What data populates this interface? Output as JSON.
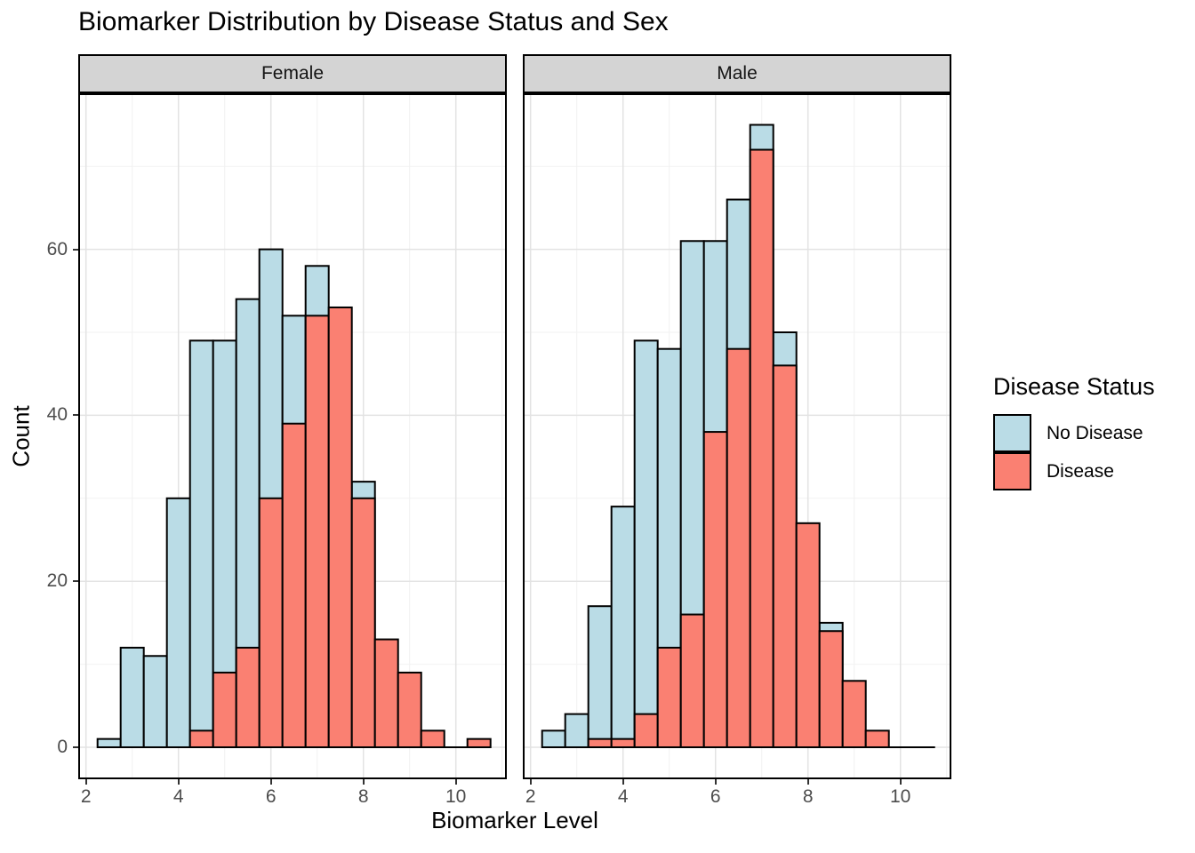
{
  "title": "Biomarker Distribution by Disease Status and Sex",
  "facets": [
    {
      "label": "Female"
    },
    {
      "label": "Male"
    }
  ],
  "axes": {
    "x_label": "Biomarker Level",
    "y_label": "Count",
    "x_ticks": [
      2,
      4,
      6,
      8,
      10
    ],
    "y_ticks": [
      0,
      20,
      40,
      60
    ]
  },
  "legend": {
    "title": "Disease Status",
    "items": [
      {
        "label": "No Disease",
        "color": "#BADCE6"
      },
      {
        "label": "Disease",
        "color": "#FA8072"
      }
    ]
  },
  "colors": {
    "no_disease_fill": "#BADCE6",
    "disease_fill": "#FA8072",
    "bar_outline": "#000000",
    "strip_fill": "#D4D4D4",
    "panel_border": "#000000",
    "grid_major": "#E3E3E3",
    "grid_minor": "#F2F2F2",
    "tick_label": "#4D4D4D"
  },
  "chart_data": {
    "type": "bar",
    "subtype": "overlaid-histogram",
    "title": "Biomarker Distribution by Disease Status and Sex",
    "xlabel": "Biomarker Level",
    "ylabel": "Count",
    "legend_position": "right",
    "binwidth": 0.5,
    "bin_centers": [
      2.5,
      3,
      3.5,
      4,
      4.5,
      5,
      5.5,
      6,
      6.5,
      7,
      7.5,
      8,
      8.5,
      9,
      9.5,
      10,
      10.5
    ],
    "x_domain": [
      1.83,
      11.17
    ],
    "y_domain": [
      0,
      79
    ],
    "baseline_extent": [
      2.25,
      10.75
    ],
    "grid": {
      "x_major": [
        2,
        4,
        6,
        8,
        10
      ],
      "x_minor": [
        3,
        5,
        7,
        9,
        11
      ],
      "y_major": [
        0,
        20,
        40,
        60
      ],
      "y_minor": [
        10,
        30,
        50,
        70
      ]
    },
    "panels": [
      {
        "facet": "Female",
        "series": [
          {
            "name": "No Disease",
            "values": [
              1,
              12,
              11,
              30,
              49,
              49,
              54,
              60,
              52,
              58,
              null,
              32,
              null,
              null,
              null,
              null,
              null
            ]
          },
          {
            "name": "Disease",
            "values": [
              null,
              null,
              null,
              null,
              2,
              9,
              12,
              30,
              39,
              52,
              53,
              30,
              13,
              9,
              2,
              null,
              1
            ]
          }
        ]
      },
      {
        "facet": "Male",
        "series": [
          {
            "name": "No Disease",
            "values": [
              2,
              4,
              17,
              29,
              49,
              48,
              61,
              61,
              66,
              75,
              50,
              null,
              15,
              null,
              null,
              null,
              null
            ]
          },
          {
            "name": "Disease",
            "values": [
              null,
              null,
              1,
              1,
              4,
              12,
              16,
              38,
              48,
              72,
              46,
              27,
              14,
              8,
              2,
              null,
              null
            ]
          }
        ]
      }
    ]
  }
}
